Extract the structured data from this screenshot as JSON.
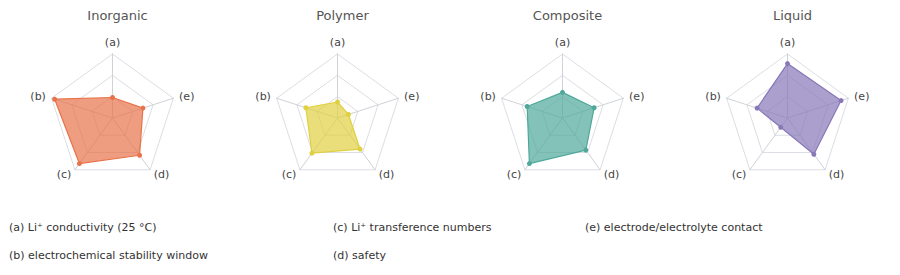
{
  "chart_data": [
    {
      "type": "radar",
      "title": "Inorganic",
      "categories": [
        "(a)",
        "(b)",
        "(c)",
        "(d)",
        "(e)"
      ],
      "values": [
        0.32,
        0.95,
        0.88,
        0.72,
        0.5
      ],
      "color": "#E8734A",
      "ylim": [
        0,
        1
      ],
      "yticks": [
        0,
        0.3333333333333333,
        0.6666666666666666,
        1
      ],
      "grid": true,
      "tick_labels": false
    },
    {
      "type": "radar",
      "title": "Polymer",
      "categories": [
        "(a)",
        "(b)",
        "(c)",
        "(d)",
        "(e)"
      ],
      "values": [
        0.25,
        0.52,
        0.68,
        0.6,
        0.18
      ],
      "color": "#E0D040",
      "ylim": [
        0,
        1
      ],
      "yticks": [
        0,
        0.3333333333333333,
        0.6666666666666666,
        1
      ],
      "grid": true,
      "tick_labels": false
    },
    {
      "type": "radar",
      "title": "Composite",
      "categories": [
        "(a)",
        "(b)",
        "(c)",
        "(d)",
        "(e)"
      ],
      "values": [
        0.4,
        0.58,
        0.88,
        0.62,
        0.52
      ],
      "color": "#4FA89A",
      "ylim": [
        0,
        1
      ],
      "yticks": [
        0,
        0.3333333333333333,
        0.6666666666666666,
        1
      ],
      "grid": true,
      "tick_labels": false
    },
    {
      "type": "radar",
      "title": "Liquid",
      "categories": [
        "(a)",
        "(b)",
        "(c)",
        "(d)",
        "(e)"
      ],
      "values": [
        0.85,
        0.5,
        0.18,
        0.7,
        0.88
      ],
      "color": "#8878B8",
      "ylim": [
        0,
        1
      ],
      "yticks": [
        0,
        0.3333333333333333,
        0.6666666666666666,
        1
      ],
      "grid": true,
      "tick_labels": false
    }
  ],
  "annotations": [
    "(a) Li⁺ conductivity (25 °C)",
    "(b) electrochemical stability window",
    "(c) Li⁺ transference numbers",
    "(d) safety",
    "(e) electrode/electrolyte contact"
  ]
}
